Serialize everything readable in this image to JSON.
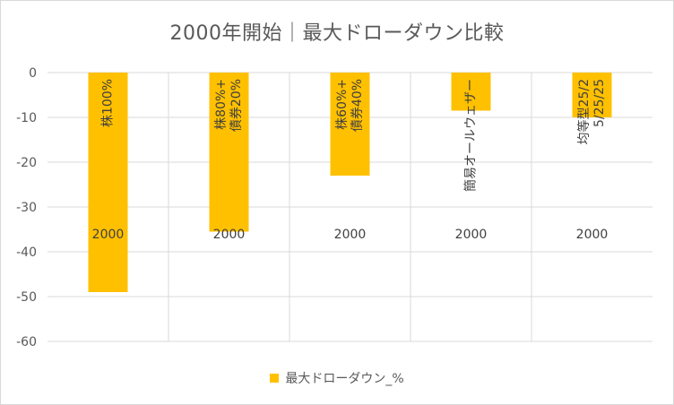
{
  "chart_data": {
    "type": "bar",
    "title": "2000年開始｜最大ドローダウン比較",
    "categories": [
      "2000",
      "2000",
      "2000",
      "2000",
      "2000"
    ],
    "series": [
      {
        "name": "最大ドローダウン_%",
        "values": [
          -49,
          -35.5,
          -23,
          -8.5,
          -10
        ],
        "labels": [
          "株100%",
          "株80%+債券20%",
          "株60%+債券40%",
          "簡易オールウェザー",
          "均等型25/25/25/25"
        ]
      }
    ],
    "ylim": [
      -60,
      0
    ],
    "yticks": [
      0,
      -10,
      -20,
      -30,
      -40,
      -50,
      -60
    ],
    "grid": true,
    "legend": "bottom",
    "colors": {
      "bar": "#ffc000",
      "grid": "#d9d9d9",
      "text": "#595959",
      "label": "#404040"
    }
  }
}
